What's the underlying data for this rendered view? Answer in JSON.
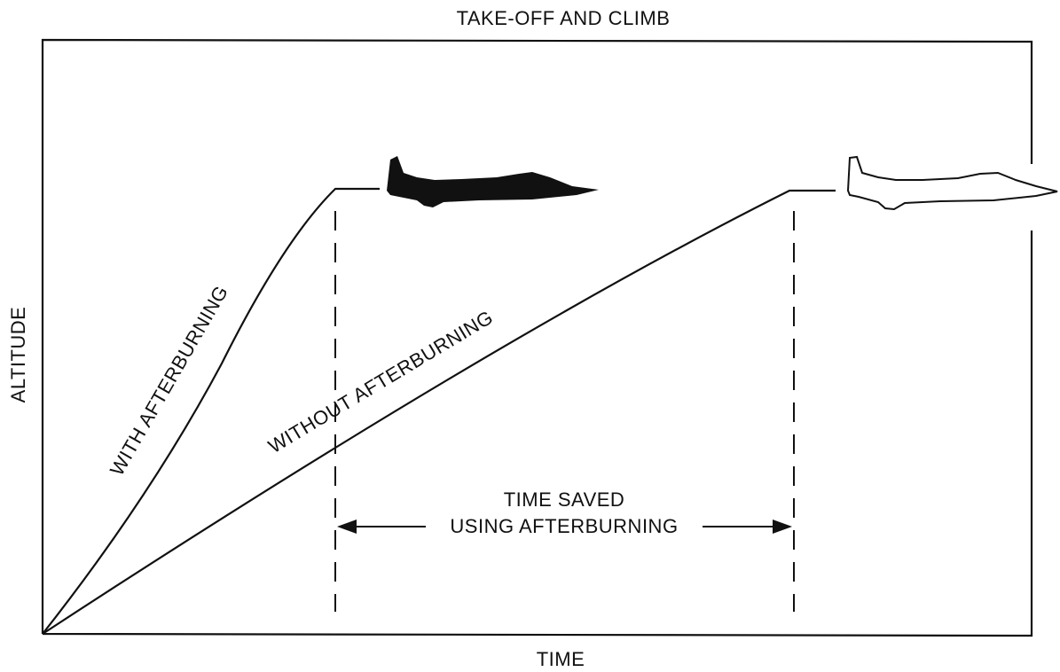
{
  "title": "TAKE-OFF AND CLIMB",
  "axes": {
    "x_label": "TIME",
    "y_label": "ALTITUDE"
  },
  "curves": [
    {
      "label": "WITH AFTERBURNING"
    },
    {
      "label": "WITHOUT AFTERBURNING"
    }
  ],
  "annotation": {
    "lines": [
      "TIME SAVED",
      "USING AFTERBURNING"
    ]
  }
}
